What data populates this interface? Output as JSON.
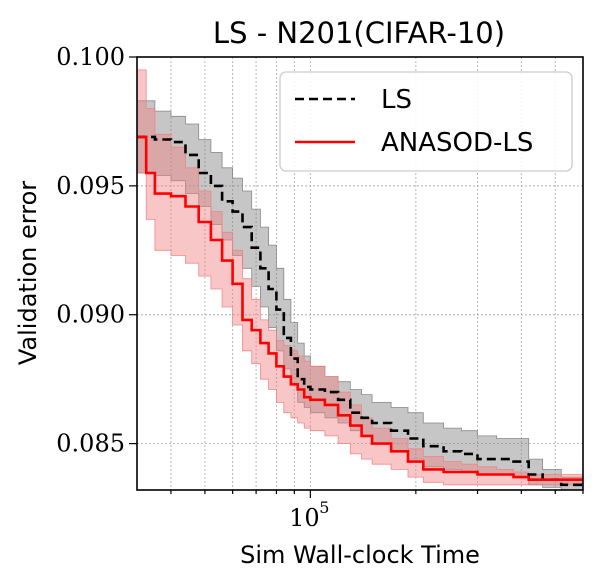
{
  "chart_data": {
    "type": "line",
    "title": "LS - N201(CIFAR-10)",
    "xlabel": "Sim Wall-clock Time",
    "ylabel": "Validation error",
    "x_scale": "log",
    "xlim": [
      32000,
      600000
    ],
    "ylim": [
      0.0832,
      0.1
    ],
    "x_ticks": [
      {
        "value": 100000,
        "base": "10",
        "exp": "5"
      }
    ],
    "y_ticks": [
      0.085,
      0.09,
      0.095,
      0.1
    ],
    "y_tick_labels": [
      "0.085",
      "0.090",
      "0.095",
      "0.100"
    ],
    "grid": true,
    "legend_position": "top-right",
    "series": [
      {
        "name": "LS",
        "color": "#000000",
        "dash": "dashed",
        "band_color": "#808080",
        "x": [
          32000,
          36000,
          40000,
          44000,
          48000,
          52000,
          56000,
          60000,
          64000,
          68000,
          72000,
          76000,
          80000,
          84000,
          88000,
          92000,
          96000,
          100000,
          110000,
          120000,
          130000,
          140000,
          150000,
          170000,
          190000,
          210000,
          240000,
          270000,
          300000,
          340000,
          380000,
          420000,
          460000,
          520000,
          600000
        ],
        "y": [
          0.0969,
          0.0968,
          0.0967,
          0.0962,
          0.0955,
          0.095,
          0.0944,
          0.094,
          0.0934,
          0.0926,
          0.0918,
          0.091,
          0.0902,
          0.0891,
          0.0883,
          0.0875,
          0.0872,
          0.0871,
          0.087,
          0.0867,
          0.0862,
          0.086,
          0.0858,
          0.0855,
          0.0852,
          0.0849,
          0.0847,
          0.0846,
          0.0844,
          0.0844,
          0.0843,
          0.0838,
          0.0836,
          0.0834,
          0.0834
        ],
        "lower": [
          0.0955,
          0.0954,
          0.0952,
          0.0947,
          0.0942,
          0.0935,
          0.0929,
          0.0923,
          0.0918,
          0.0911,
          0.0903,
          0.0895,
          0.0886,
          0.0879,
          0.0873,
          0.0866,
          0.0864,
          0.0862,
          0.086,
          0.0858,
          0.0855,
          0.0853,
          0.085,
          0.0847,
          0.0844,
          0.0841,
          0.084,
          0.0839,
          0.0838,
          0.0838,
          0.0837,
          0.0834,
          0.0833,
          0.0832,
          0.0832
        ],
        "upper": [
          0.0983,
          0.0979,
          0.0977,
          0.0974,
          0.0968,
          0.0963,
          0.0957,
          0.0953,
          0.0948,
          0.0941,
          0.0934,
          0.0927,
          0.0918,
          0.0906,
          0.0897,
          0.0889,
          0.0884,
          0.088,
          0.0876,
          0.0874,
          0.0871,
          0.0869,
          0.0866,
          0.0864,
          0.0862,
          0.0858,
          0.0856,
          0.0855,
          0.0853,
          0.0852,
          0.0852,
          0.0844,
          0.084,
          0.0837,
          0.0837
        ]
      },
      {
        "name": "ANASOD-LS",
        "color": "#ff0000",
        "dash": "solid",
        "band_color": "#f08080",
        "x": [
          32000,
          34000,
          36000,
          40000,
          44000,
          48000,
          52000,
          56000,
          60000,
          64000,
          68000,
          72000,
          76000,
          80000,
          84000,
          88000,
          92000,
          96000,
          100000,
          110000,
          120000,
          130000,
          140000,
          150000,
          170000,
          190000,
          210000,
          240000,
          270000,
          300000,
          340000,
          380000,
          420000,
          460000,
          520000,
          600000
        ],
        "y": [
          0.0969,
          0.0955,
          0.0947,
          0.0946,
          0.0942,
          0.0936,
          0.0929,
          0.0921,
          0.0912,
          0.0898,
          0.0894,
          0.0889,
          0.0885,
          0.088,
          0.0876,
          0.0873,
          0.0871,
          0.0868,
          0.0867,
          0.0865,
          0.0861,
          0.0857,
          0.0853,
          0.085,
          0.0847,
          0.0843,
          0.084,
          0.0839,
          0.0839,
          0.0838,
          0.0838,
          0.0837,
          0.0836,
          0.0836,
          0.0836,
          0.0836
        ],
        "lower": [
          0.0955,
          0.0937,
          0.0925,
          0.0923,
          0.092,
          0.0915,
          0.091,
          0.0903,
          0.0896,
          0.0886,
          0.0881,
          0.0875,
          0.0871,
          0.0866,
          0.0862,
          0.086,
          0.0858,
          0.0856,
          0.0855,
          0.0853,
          0.085,
          0.0846,
          0.0844,
          0.0842,
          0.084,
          0.0837,
          0.0835,
          0.0834,
          0.0834,
          0.0834,
          0.0834,
          0.0834,
          0.0834,
          0.0834,
          0.0834,
          0.0834
        ],
        "upper": [
          0.0995,
          0.098,
          0.097,
          0.0965,
          0.0957,
          0.0948,
          0.094,
          0.0932,
          0.0925,
          0.0914,
          0.0906,
          0.0898,
          0.0894,
          0.089,
          0.0888,
          0.0886,
          0.0884,
          0.0882,
          0.088,
          0.0876,
          0.087,
          0.0865,
          0.086,
          0.0856,
          0.0852,
          0.0848,
          0.0845,
          0.0843,
          0.0842,
          0.0841,
          0.084,
          0.0839,
          0.0838,
          0.0838,
          0.0838,
          0.0838
        ]
      }
    ]
  }
}
